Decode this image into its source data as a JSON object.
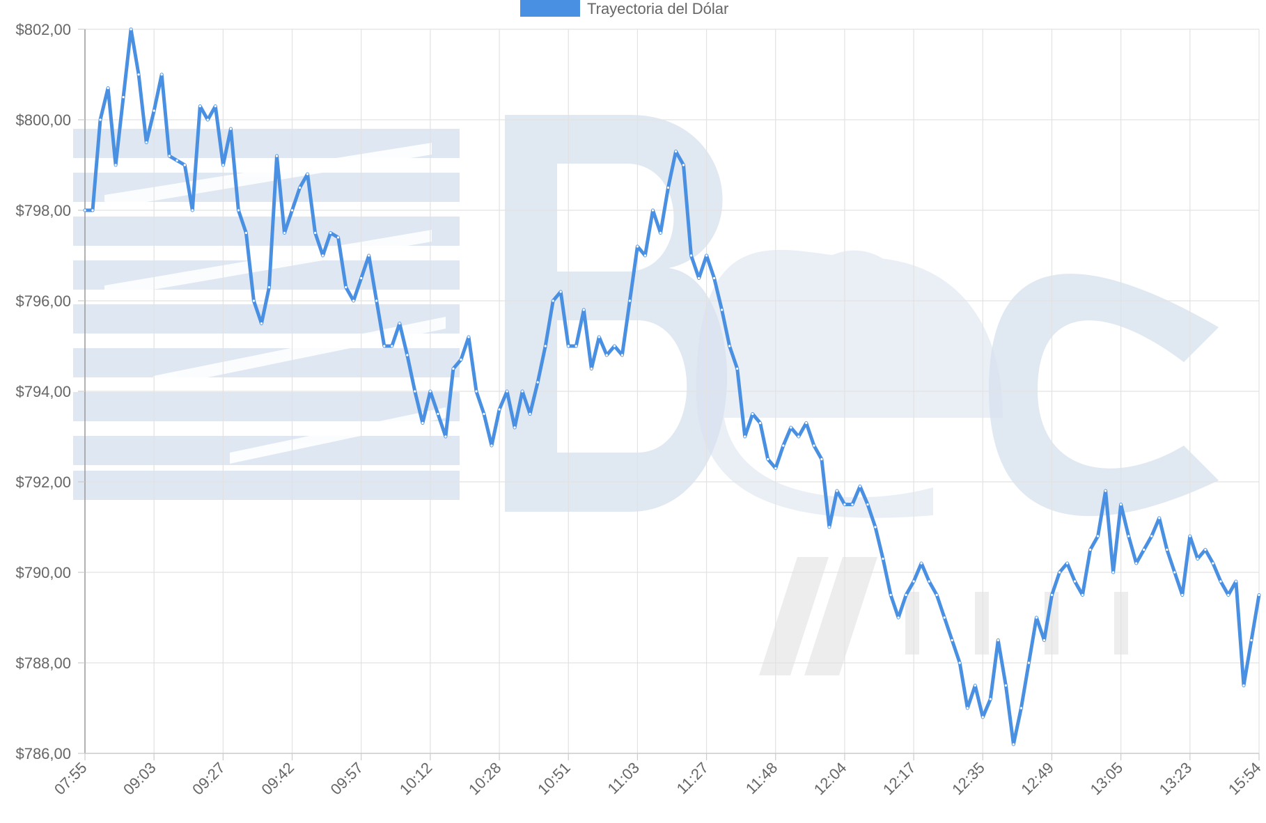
{
  "chart_data": {
    "type": "line",
    "legend": {
      "label": "Trayectoria del Dólar",
      "position": "top-center",
      "color": "#4a90e2"
    },
    "y_axis": {
      "ticks": [
        "$786,00",
        "$788,00",
        "$790,00",
        "$792,00",
        "$794,00",
        "$796,00",
        "$798,00",
        "$800,00",
        "$802,00"
      ],
      "ylim": [
        786,
        802
      ],
      "grid": true
    },
    "x_axis": {
      "ticks": [
        "07:55",
        "09:03",
        "09:27",
        "09:42",
        "09:57",
        "10:12",
        "10:28",
        "10:51",
        "11:03",
        "11:27",
        "11:48",
        "12:04",
        "12:17",
        "12:35",
        "12:49",
        "13:05",
        "13:23",
        "15:54"
      ],
      "grid": true
    },
    "series": [
      {
        "name": "Trayectoria del Dólar",
        "color": "#4a90e2",
        "values": [
          798.0,
          798.0,
          800.0,
          800.7,
          799.0,
          800.5,
          802.0,
          801.0,
          799.5,
          800.2,
          801.0,
          799.2,
          799.1,
          799.0,
          798.0,
          800.3,
          800.0,
          800.3,
          799.0,
          799.8,
          798.0,
          797.5,
          796.0,
          795.5,
          796.3,
          799.2,
          797.5,
          798.0,
          798.5,
          798.8,
          797.5,
          797.0,
          797.5,
          797.4,
          796.3,
          796.0,
          796.5,
          797.0,
          796.0,
          795.0,
          795.0,
          795.5,
          794.8,
          794.0,
          793.3,
          794.0,
          793.5,
          793.0,
          794.5,
          794.7,
          795.2,
          794.0,
          793.5,
          792.8,
          793.6,
          794.0,
          793.2,
          794.0,
          793.5,
          794.2,
          795.0,
          796.0,
          796.2,
          795.0,
          795.0,
          795.8,
          794.5,
          795.2,
          794.8,
          795.0,
          794.8,
          796.0,
          797.2,
          797.0,
          798.0,
          797.5,
          798.5,
          799.3,
          799.0,
          797.0,
          796.5,
          797.0,
          796.5,
          795.8,
          795.0,
          794.5,
          793.0,
          793.5,
          793.3,
          792.5,
          792.3,
          792.8,
          793.2,
          793.0,
          793.3,
          792.8,
          792.5,
          791.0,
          791.8,
          791.5,
          791.5,
          791.9,
          791.5,
          791.0,
          790.3,
          789.5,
          789.0,
          789.5,
          789.8,
          790.2,
          789.8,
          789.5,
          789.0,
          788.5,
          788.0,
          787.0,
          787.5,
          786.8,
          787.2,
          788.5,
          787.5,
          786.2,
          787.0,
          788.0,
          789.0,
          788.5,
          789.5,
          790.0,
          790.2,
          789.8,
          789.5,
          790.5,
          790.8,
          791.8,
          790.0,
          791.5,
          790.8,
          790.2,
          790.5,
          790.8,
          791.2,
          790.5,
          790.0,
          789.5,
          790.8,
          790.3,
          790.5,
          790.2,
          789.8,
          789.5,
          789.8,
          787.5,
          788.5,
          789.5
        ]
      }
    ]
  }
}
